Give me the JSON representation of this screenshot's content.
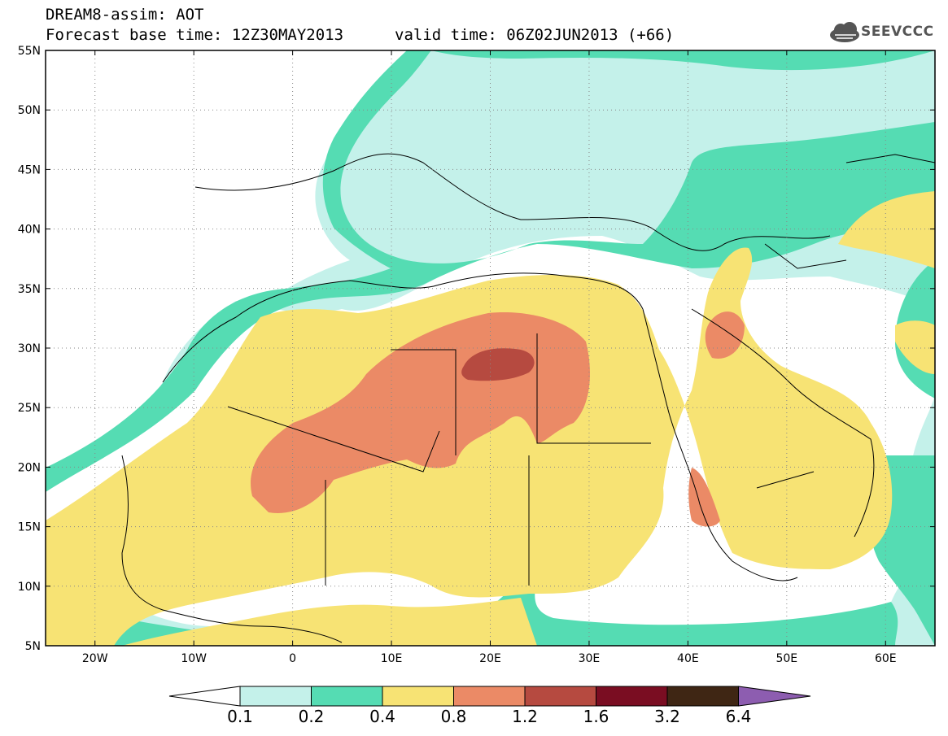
{
  "header": {
    "title": "DREAM8-assim: AOT",
    "base_time": "Forecast base time: 12Z30MAY2013",
    "valid_time": "valid time: 06Z02JUN2013 (+66)"
  },
  "logo": {
    "text": "SEEVCCC",
    "icon": "cloud-icon"
  },
  "map": {
    "lat_labels": [
      "55N",
      "50N",
      "45N",
      "40N",
      "35N",
      "30N",
      "25N",
      "20N",
      "15N",
      "10N",
      "5N"
    ],
    "lon_labels": [
      "20W",
      "10W",
      "0",
      "10E",
      "20E",
      "30E",
      "40E",
      "50E",
      "60E"
    ],
    "extent": {
      "lon": [
        -25,
        65
      ],
      "lat": [
        5,
        55
      ]
    },
    "grid": "dotted"
  },
  "legend": {
    "thresholds": [
      "0.1",
      "0.2",
      "0.4",
      "0.8",
      "1.2",
      "1.6",
      "3.2",
      "6.4"
    ],
    "colors": [
      "#ffffff",
      "#c4f1ea",
      "#55dcb3",
      "#f7e374",
      "#eb8a66",
      "#b64a40",
      "#7a0d22",
      "#3f2614",
      "#8d5db0"
    ]
  },
  "fill_colors": {
    "c1": "#c4f1ea",
    "c2": "#55dcb3",
    "c3": "#f7e374",
    "c4": "#eb8a66",
    "c5": "#b64a40"
  }
}
